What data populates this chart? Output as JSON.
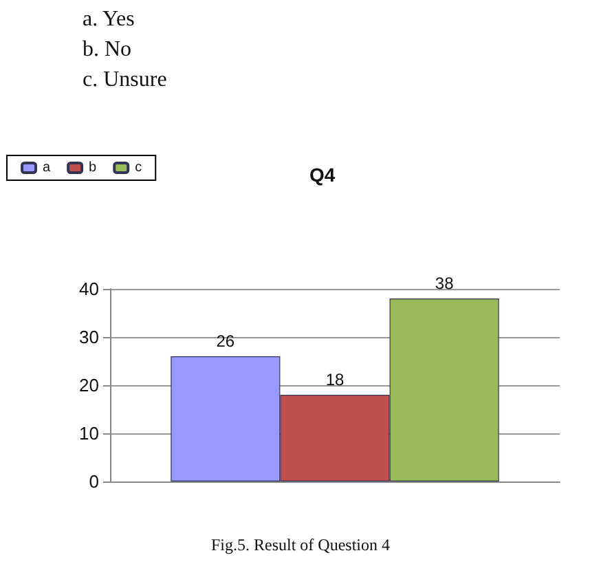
{
  "chart_data": {
    "type": "bar",
    "title": "Q4",
    "annotations": [
      "a. Yes",
      "b. No",
      "c. Unsure",
      "Fig.5. Result of Question 4"
    ],
    "categories": [
      null
    ],
    "series": [
      {
        "name": "a",
        "color": "#9999ff",
        "values": [
          26
        ]
      },
      {
        "name": "b",
        "color": "#c0504d",
        "values": [
          18
        ]
      },
      {
        "name": "c",
        "color": "#9bbb59",
        "values": [
          38
        ]
      }
    ],
    "ylim": [
      0,
      40
    ],
    "yticks": [
      0,
      10,
      20,
      30,
      40
    ],
    "grid": "y",
    "legend": "top left",
    "data_labels": true
  }
}
